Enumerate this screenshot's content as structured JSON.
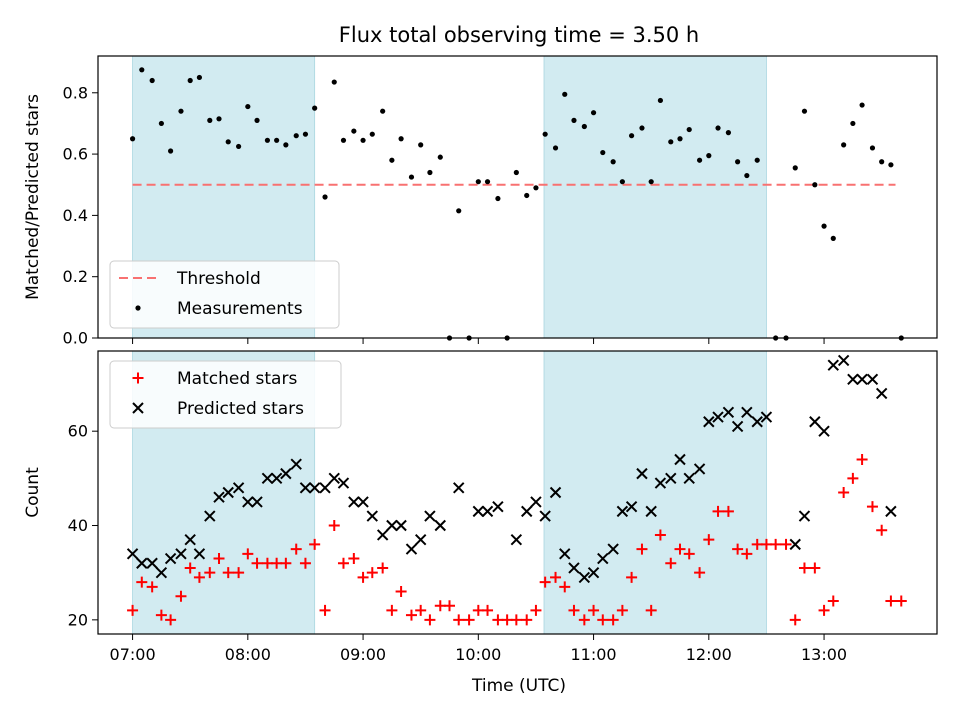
{
  "chart_data": {
    "title": "Flux total observing time = 3.50 h",
    "xlabel": "Time (UTC)",
    "x_tick_labels": [
      "07:00",
      "08:00",
      "09:00",
      "10:00",
      "11:00",
      "12:00",
      "13:00"
    ],
    "x_ticks_hours": [
      7,
      8,
      9,
      10,
      11,
      12,
      13
    ],
    "xlim_hours": [
      6.7,
      13.98
    ],
    "shaded_intervals_hours": [
      [
        7.0,
        8.58
      ],
      [
        10.57,
        12.5
      ]
    ],
    "shade_color": "#d2ebf1",
    "panels": [
      {
        "type": "scatter",
        "ylabel": "Matched/Predicted stars",
        "ylim": [
          0,
          0.92
        ],
        "y_ticks": [
          0.0,
          0.2,
          0.4,
          0.6,
          0.8
        ],
        "y_tick_labels": [
          "0.0",
          "0.2",
          "0.4",
          "0.6",
          "0.8"
        ],
        "legend_position": "lower-left",
        "threshold": {
          "name": "Threshold",
          "value": 0.5,
          "x_range_hours": [
            7.0,
            13.62
          ],
          "color": "#f87171"
        },
        "series": [
          {
            "name": "Measurements",
            "color": "#000000",
            "marker": "dot",
            "x": [
              7.0,
              7.08,
              7.17,
              7.25,
              7.33,
              7.42,
              7.5,
              7.58,
              7.67,
              7.75,
              7.83,
              7.92,
              8.0,
              8.08,
              8.17,
              8.25,
              8.33,
              8.42,
              8.5,
              8.58,
              8.67,
              8.75,
              8.83,
              8.92,
              9.0,
              9.08,
              9.17,
              9.25,
              9.33,
              9.42,
              9.5,
              9.58,
              9.67,
              9.75,
              9.83,
              9.92,
              10.0,
              10.08,
              10.17,
              10.25,
              10.33,
              10.42,
              10.5,
              10.58,
              10.67,
              10.75,
              10.83,
              10.92,
              11.0,
              11.08,
              11.17,
              11.25,
              11.33,
              11.42,
              11.5,
              11.58,
              11.67,
              11.75,
              11.83,
              11.92,
              12.0,
              12.08,
              12.17,
              12.25,
              12.33,
              12.42,
              12.58,
              12.67,
              12.75,
              12.83,
              12.92,
              13.0,
              13.08,
              13.17,
              13.25,
              13.33,
              13.42,
              13.5,
              13.58,
              13.67
            ],
            "y": [
              0.65,
              0.875,
              0.84,
              0.7,
              0.61,
              0.74,
              0.84,
              0.85,
              0.71,
              0.715,
              0.64,
              0.625,
              0.755,
              0.71,
              0.645,
              0.645,
              0.63,
              0.66,
              0.665,
              0.75,
              0.46,
              0.835,
              0.645,
              0.675,
              0.645,
              0.665,
              0.74,
              0.58,
              0.65,
              0.525,
              0.63,
              0.54,
              0.59,
              0.0,
              0.415,
              0.0,
              0.51,
              0.51,
              0.455,
              0.0,
              0.54,
              0.465,
              0.49,
              0.665,
              0.62,
              0.795,
              0.71,
              0.69,
              0.735,
              0.605,
              0.575,
              0.51,
              0.66,
              0.685,
              0.51,
              0.775,
              0.64,
              0.65,
              0.68,
              0.58,
              0.595,
              0.685,
              0.67,
              0.575,
              0.53,
              0.58,
              0.0,
              0.0,
              0.555,
              0.74,
              0.5,
              0.365,
              0.325,
              0.63,
              0.7,
              0.76,
              0.62,
              0.575,
              0.565,
              0.0
            ]
          }
        ]
      },
      {
        "type": "scatter",
        "ylabel": "Count",
        "ylim": [
          17,
          77
        ],
        "y_ticks": [
          20,
          40,
          60
        ],
        "y_tick_labels": [
          "20",
          "40",
          "60"
        ],
        "legend_position": "upper-left",
        "series": [
          {
            "name": "Matched stars",
            "color": "#ff0000",
            "marker": "plus",
            "x": [
              7.0,
              7.08,
              7.17,
              7.25,
              7.33,
              7.42,
              7.5,
              7.58,
              7.67,
              7.75,
              7.83,
              7.92,
              8.0,
              8.08,
              8.17,
              8.25,
              8.33,
              8.42,
              8.5,
              8.58,
              8.67,
              8.75,
              8.83,
              8.92,
              9.0,
              9.08,
              9.17,
              9.25,
              9.33,
              9.42,
              9.5,
              9.58,
              9.67,
              9.75,
              9.83,
              9.92,
              10.0,
              10.08,
              10.17,
              10.25,
              10.33,
              10.42,
              10.5,
              10.58,
              10.67,
              10.75,
              10.83,
              10.92,
              11.0,
              11.08,
              11.17,
              11.25,
              11.33,
              11.42,
              11.5,
              11.58,
              11.67,
              11.75,
              11.83,
              11.92,
              12.0,
              12.08,
              12.17,
              12.25,
              12.33,
              12.42,
              12.5,
              12.58,
              12.67,
              12.75,
              12.83,
              12.92,
              13.0,
              13.08,
              13.17,
              13.25,
              13.33,
              13.42,
              13.5,
              13.58,
              13.67
            ],
            "y": [
              22,
              28,
              27,
              21,
              20,
              25,
              31,
              29,
              30,
              33,
              30,
              30,
              34,
              32,
              32,
              32,
              32,
              35,
              32,
              36,
              22,
              40,
              32,
              33,
              29,
              30,
              31,
              22,
              26,
              21,
              22,
              20,
              23,
              23,
              20,
              20,
              22,
              22,
              20,
              20,
              20,
              20,
              22,
              28,
              29,
              27,
              22,
              20,
              22,
              20,
              20,
              22,
              29,
              35,
              22,
              38,
              32,
              35,
              34,
              30,
              37,
              43,
              43,
              35,
              34,
              36,
              36,
              36,
              36,
              20,
              31,
              31,
              22,
              24,
              47,
              50,
              54,
              44,
              39,
              24,
              24
            ]
          },
          {
            "name": "Predicted stars",
            "color": "#000000",
            "marker": "x",
            "x": [
              7.0,
              7.08,
              7.17,
              7.25,
              7.33,
              7.42,
              7.5,
              7.58,
              7.67,
              7.75,
              7.83,
              7.92,
              8.0,
              8.08,
              8.17,
              8.25,
              8.33,
              8.42,
              8.5,
              8.58,
              8.67,
              8.75,
              8.83,
              8.92,
              9.0,
              9.08,
              9.17,
              9.25,
              9.33,
              9.42,
              9.5,
              9.58,
              9.67,
              9.83,
              10.0,
              10.08,
              10.17,
              10.33,
              10.42,
              10.5,
              10.58,
              10.67,
              10.75,
              10.83,
              10.92,
              11.0,
              11.08,
              11.17,
              11.25,
              11.33,
              11.42,
              11.5,
              11.58,
              11.67,
              11.75,
              11.83,
              11.92,
              12.0,
              12.08,
              12.17,
              12.25,
              12.33,
              12.42,
              12.5,
              12.75,
              12.83,
              12.92,
              13.0,
              13.08,
              13.17,
              13.25,
              13.33,
              13.42,
              13.5,
              13.58
            ],
            "y": [
              34,
              32,
              32,
              30,
              33,
              34,
              37,
              34,
              42,
              46,
              47,
              48,
              45,
              45,
              50,
              50,
              51,
              53,
              48,
              48,
              48,
              50,
              49,
              45,
              45,
              42,
              38,
              40,
              40,
              35,
              37,
              42,
              40,
              48,
              43,
              43,
              44,
              37,
              43,
              45,
              42,
              47,
              34,
              31,
              29,
              30,
              33,
              35,
              43,
              44,
              51,
              43,
              49,
              50,
              54,
              50,
              52,
              62,
              63,
              64,
              61,
              64,
              62,
              63,
              36,
              42,
              62,
              60,
              74,
              75,
              71,
              71,
              71,
              68,
              43
            ]
          }
        ]
      }
    ]
  }
}
